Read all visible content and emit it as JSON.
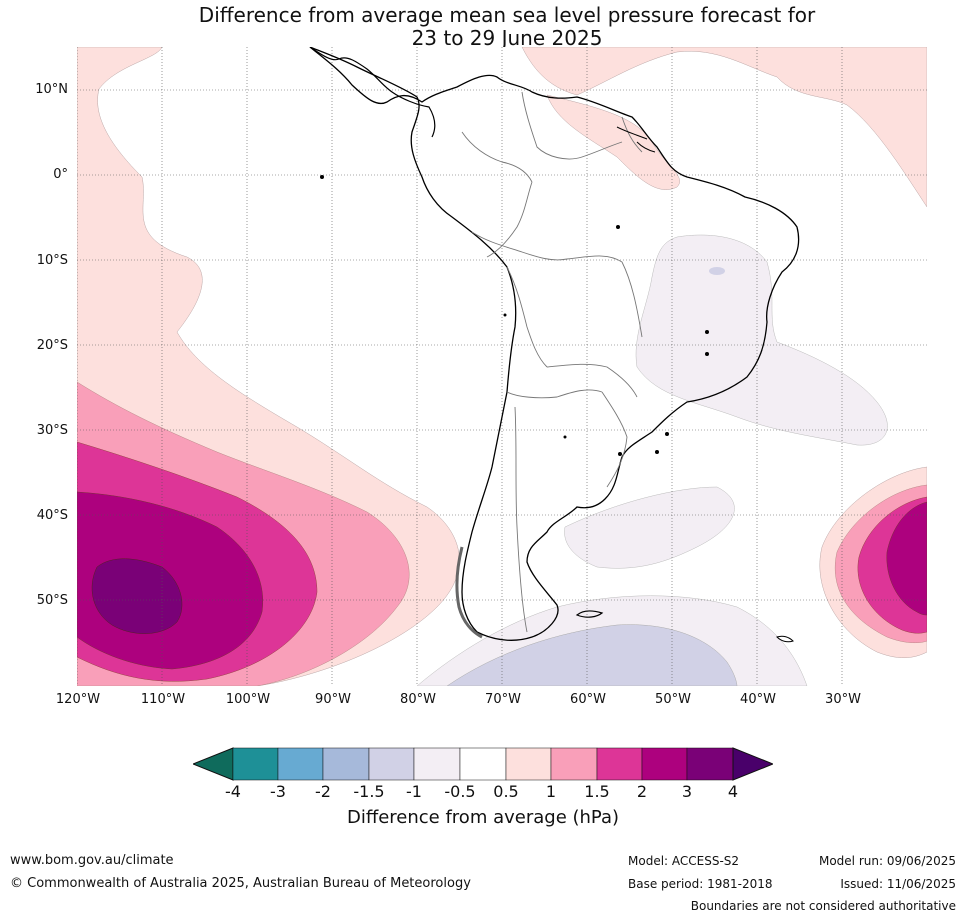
{
  "title_line1": "Difference from average mean sea level pressure forecast for",
  "title_line2": "23 to 29 June 2025",
  "latitudes": [
    "10°N",
    "0°",
    "10°S",
    "20°S",
    "30°S",
    "40°S",
    "50°S"
  ],
  "longitudes": [
    "120°W",
    "110°W",
    "100°W",
    "90°W",
    "80°W",
    "70°W",
    "60°W",
    "50°W",
    "40°W",
    "30°W"
  ],
  "colorbar": {
    "title": "Difference from average (hPa)",
    "ticks": [
      "-4",
      "-3",
      "-2",
      "-1.5",
      "-1",
      "-0.5",
      "0.5",
      "1",
      "1.5",
      "2",
      "3",
      "4"
    ],
    "colors": [
      "#0f6b5c",
      "#1e9097",
      "#67aad2",
      "#a6b9da",
      "#d1d1e6",
      "#f3eef4",
      "#ffffff",
      "#fde0dd",
      "#f99fb9",
      "#dd3597",
      "#ad017e",
      "#7a0177",
      "#49006a"
    ]
  },
  "footer": {
    "website": "www.bom.gov.au/climate",
    "copyright": "© Commonwealth of Australia 2025, Australian Bureau of Meteorology",
    "model": "Model: ACCESS-S2",
    "base_period": "Base period: 1981-2018",
    "model_run": "Model run: 09/06/2025",
    "issued": "Issued: 11/06/2025",
    "disclaimer": "Boundaries are not considered authoritative"
  }
}
